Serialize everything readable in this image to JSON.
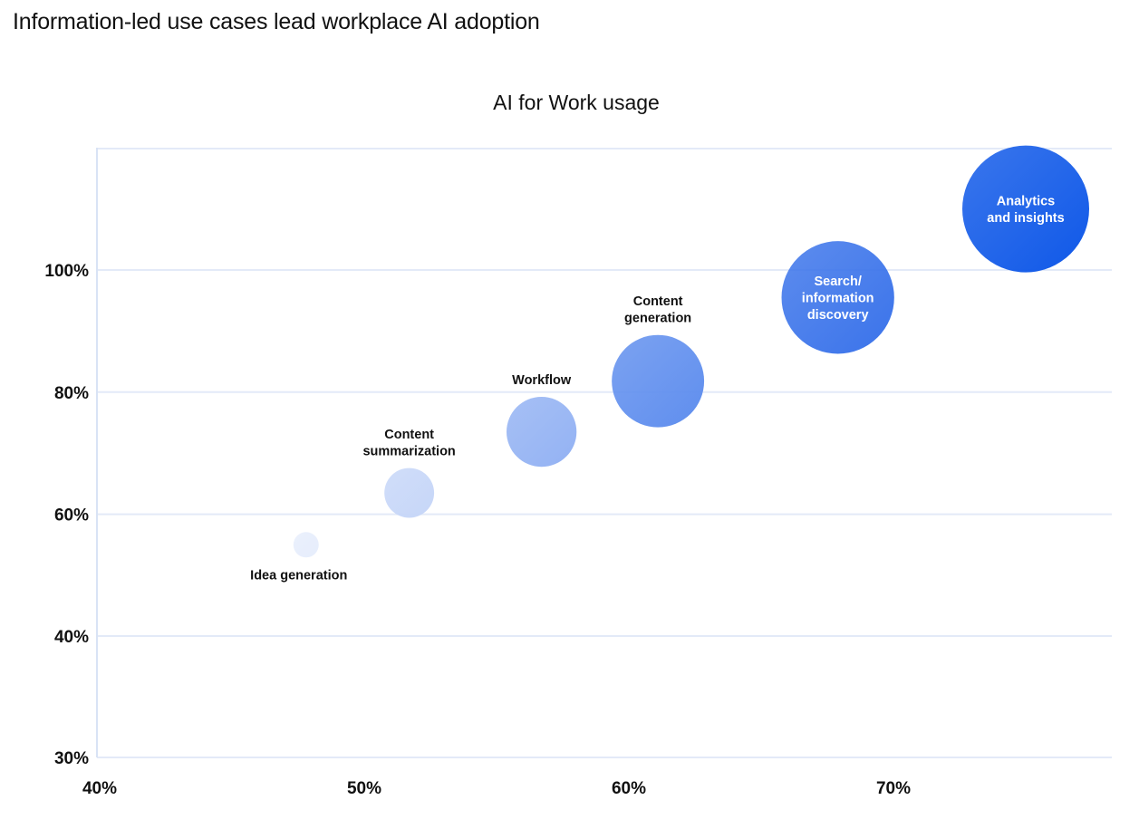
{
  "page": {
    "heading": "Information-led use cases lead workplace AI adoption"
  },
  "chart_data": {
    "type": "bubble",
    "title": "AI for Work usage",
    "xlabel": "",
    "ylabel": "",
    "xlim": [
      40,
      78
    ],
    "ylim": [
      30,
      120
    ],
    "x_ticks": [
      {
        "value": 40,
        "label": "40%"
      },
      {
        "value": 50,
        "label": "50%"
      },
      {
        "value": 60,
        "label": "60%"
      },
      {
        "value": 70,
        "label": "70%"
      }
    ],
    "y_ticks": [
      {
        "value": 30,
        "label": "30%"
      },
      {
        "value": 40,
        "label": "40%"
      },
      {
        "value": 60,
        "label": "60%"
      },
      {
        "value": 80,
        "label": "80%"
      },
      {
        "value": 100,
        "label": "100%"
      }
    ],
    "grid": "horizontal",
    "points": [
      {
        "name": "Idea generation",
        "label_lines": [
          "Idea generation"
        ],
        "label_position": "below",
        "x": 47.8,
        "y": 55.0,
        "size": 1,
        "color": "#e6edfc"
      },
      {
        "name": "Content summarization",
        "label_lines": [
          "Content",
          "summarization"
        ],
        "label_position": "above",
        "x": 51.7,
        "y": 63.5,
        "size": 2.2,
        "color": "#c6d6f8"
      },
      {
        "name": "Workflow",
        "label_lines": [
          "Workflow"
        ],
        "label_position": "above",
        "x": 56.7,
        "y": 73.5,
        "size": 3.2,
        "color": "#93b2f3"
      },
      {
        "name": "Content generation",
        "label_lines": [
          "Content",
          "generation"
        ],
        "label_position": "above",
        "x": 61.1,
        "y": 81.8,
        "size": 4.3,
        "color": "#5f8eee"
      },
      {
        "name": "Search/ information discovery",
        "label_lines": [
          "Search/",
          "information",
          "discovery"
        ],
        "label_position": "inside",
        "x": 67.9,
        "y": 95.5,
        "size": 5.3,
        "color": "#3a73ea"
      },
      {
        "name": "Analytics and insights",
        "label_lines": [
          "Analytics",
          "and insights"
        ],
        "label_position": "inside",
        "x": 75.0,
        "y": 110.0,
        "size": 6.0,
        "color": "#0f58e8"
      }
    ]
  }
}
